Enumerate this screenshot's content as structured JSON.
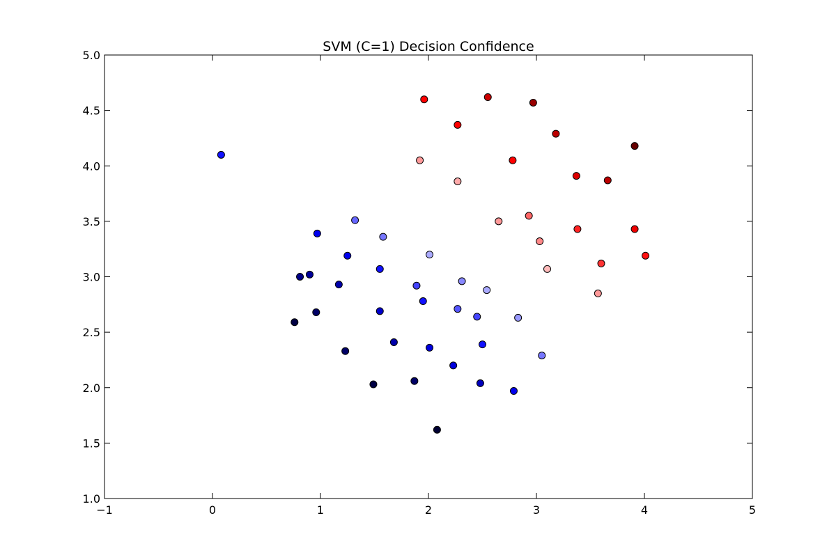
{
  "chart_data": {
    "type": "scatter",
    "title": "SVM (C=1) Decision Confidence",
    "xlabel": "",
    "ylabel": "",
    "xlim": [
      -1,
      5
    ],
    "ylim": [
      1.0,
      5.0
    ],
    "xticks": [
      "−1",
      "0",
      "1",
      "2",
      "3",
      "4",
      "5"
    ],
    "xtick_values": [
      -1,
      0,
      1,
      2,
      3,
      4,
      5
    ],
    "yticks": [
      "1.0",
      "1.5",
      "2.0",
      "2.5",
      "3.0",
      "3.5",
      "4.0",
      "4.5",
      "5.0"
    ],
    "ytick_values": [
      1.0,
      1.5,
      2.0,
      2.5,
      3.0,
      3.5,
      4.0,
      4.5,
      5.0
    ],
    "grid": false,
    "points": [
      {
        "x": 1.96,
        "y": 4.6,
        "color": "#ff0000"
      },
      {
        "x": 2.55,
        "y": 4.62,
        "color": "#cc0000"
      },
      {
        "x": 2.97,
        "y": 4.57,
        "color": "#990000"
      },
      {
        "x": 2.27,
        "y": 4.37,
        "color": "#ff0000"
      },
      {
        "x": 3.18,
        "y": 4.29,
        "color": "#bb0000"
      },
      {
        "x": 3.91,
        "y": 4.18,
        "color": "#660000"
      },
      {
        "x": 1.92,
        "y": 4.05,
        "color": "#ff9999"
      },
      {
        "x": 2.78,
        "y": 4.05,
        "color": "#ff0000"
      },
      {
        "x": 2.27,
        "y": 3.86,
        "color": "#ffaaaa"
      },
      {
        "x": 3.37,
        "y": 3.91,
        "color": "#dd0000"
      },
      {
        "x": 3.66,
        "y": 3.87,
        "color": "#bb0000"
      },
      {
        "x": 2.93,
        "y": 3.55,
        "color": "#ff6666"
      },
      {
        "x": 2.65,
        "y": 3.5,
        "color": "#ff9999"
      },
      {
        "x": 3.38,
        "y": 3.43,
        "color": "#ff2222"
      },
      {
        "x": 3.91,
        "y": 3.43,
        "color": "#ee0000"
      },
      {
        "x": 3.03,
        "y": 3.32,
        "color": "#ff8888"
      },
      {
        "x": 4.01,
        "y": 3.19,
        "color": "#ff1111"
      },
      {
        "x": 3.1,
        "y": 3.07,
        "color": "#ffbbbb"
      },
      {
        "x": 3.6,
        "y": 3.12,
        "color": "#ff3333"
      },
      {
        "x": 3.57,
        "y": 2.85,
        "color": "#ff9999"
      },
      {
        "x": 0.08,
        "y": 4.1,
        "color": "#1111ff"
      },
      {
        "x": 0.97,
        "y": 3.39,
        "color": "#0000ee"
      },
      {
        "x": 1.32,
        "y": 3.51,
        "color": "#6666ff"
      },
      {
        "x": 1.58,
        "y": 3.36,
        "color": "#7777ff"
      },
      {
        "x": 2.01,
        "y": 3.2,
        "color": "#aaaaff"
      },
      {
        "x": 1.25,
        "y": 3.19,
        "color": "#0000ee"
      },
      {
        "x": 1.55,
        "y": 3.07,
        "color": "#1111ff"
      },
      {
        "x": 0.81,
        "y": 3.0,
        "color": "#000088"
      },
      {
        "x": 0.9,
        "y": 3.02,
        "color": "#000099"
      },
      {
        "x": 1.17,
        "y": 2.93,
        "color": "#0000aa"
      },
      {
        "x": 1.89,
        "y": 2.92,
        "color": "#4444ff"
      },
      {
        "x": 2.31,
        "y": 2.96,
        "color": "#8888ff"
      },
      {
        "x": 2.54,
        "y": 2.88,
        "color": "#aaaaff"
      },
      {
        "x": 1.95,
        "y": 2.78,
        "color": "#1111ff"
      },
      {
        "x": 1.55,
        "y": 2.69,
        "color": "#0000cc"
      },
      {
        "x": 2.27,
        "y": 2.71,
        "color": "#5555ff"
      },
      {
        "x": 2.45,
        "y": 2.64,
        "color": "#4444ff"
      },
      {
        "x": 2.83,
        "y": 2.63,
        "color": "#9999ff"
      },
      {
        "x": 0.76,
        "y": 2.59,
        "color": "#000044"
      },
      {
        "x": 0.96,
        "y": 2.68,
        "color": "#000066"
      },
      {
        "x": 1.68,
        "y": 2.41,
        "color": "#0000aa"
      },
      {
        "x": 2.01,
        "y": 2.36,
        "color": "#0000dd"
      },
      {
        "x": 2.5,
        "y": 2.39,
        "color": "#1111ff"
      },
      {
        "x": 3.05,
        "y": 2.29,
        "color": "#7777ff"
      },
      {
        "x": 1.23,
        "y": 2.33,
        "color": "#000066"
      },
      {
        "x": 2.23,
        "y": 2.2,
        "color": "#0000dd"
      },
      {
        "x": 1.49,
        "y": 2.03,
        "color": "#000044"
      },
      {
        "x": 1.87,
        "y": 2.06,
        "color": "#000066"
      },
      {
        "x": 2.48,
        "y": 2.04,
        "color": "#0000bb"
      },
      {
        "x": 2.79,
        "y": 1.97,
        "color": "#0000ee"
      },
      {
        "x": 2.08,
        "y": 1.62,
        "color": "#000033"
      }
    ]
  }
}
